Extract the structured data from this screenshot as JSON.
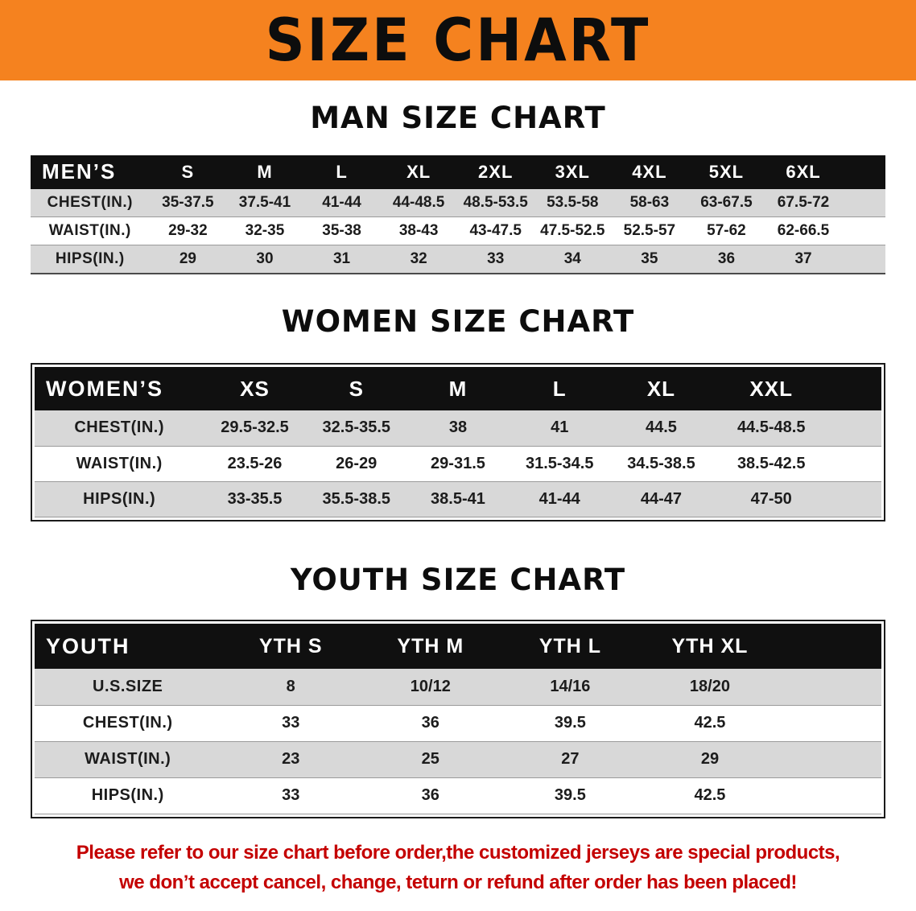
{
  "banner": {
    "title": "SIZE CHART",
    "background_color": "#f5821f",
    "text_color": "#0d0d0d"
  },
  "chart_data": [
    {
      "type": "table",
      "title": "MAN SIZE CHART",
      "header": [
        "MEN’S",
        "S",
        "M",
        "L",
        "XL",
        "2XL",
        "3XL",
        "4XL",
        "5XL",
        "6XL"
      ],
      "rows": [
        [
          "CHEST(IN.)",
          "35-37.5",
          "37.5-41",
          "41-44",
          "44-48.5",
          "48.5-53.5",
          "53.5-58",
          "58-63",
          "63-67.5",
          "67.5-72"
        ],
        [
          "WAIST(IN.)",
          "29-32",
          "32-35",
          "35-38",
          "38-43",
          "43-47.5",
          "47.5-52.5",
          "52.5-57",
          "57-62",
          "62-66.5"
        ],
        [
          "HIPS(IN.)",
          "29",
          "30",
          "31",
          "32",
          "33",
          "34",
          "35",
          "36",
          "37"
        ]
      ]
    },
    {
      "type": "table",
      "title": "WOMEN SIZE CHART",
      "header": [
        "WOMEN’S",
        "XS",
        "S",
        "M",
        "L",
        "XL",
        "XXL"
      ],
      "rows": [
        [
          "CHEST(IN.)",
          "29.5-32.5",
          "32.5-35.5",
          "38",
          "41",
          "44.5",
          "44.5-48.5"
        ],
        [
          "WAIST(IN.)",
          "23.5-26",
          "26-29",
          "29-31.5",
          "31.5-34.5",
          "34.5-38.5",
          "38.5-42.5"
        ],
        [
          "HIPS(IN.)",
          "33-35.5",
          "35.5-38.5",
          "38.5-41",
          "41-44",
          "44-47",
          "47-50"
        ]
      ]
    },
    {
      "type": "table",
      "title": "YOUTH SIZE CHART",
      "header": [
        "YOUTH",
        "YTH S",
        "YTH M",
        "YTH L",
        "YTH XL"
      ],
      "rows": [
        [
          "U.S.SIZE",
          "8",
          "10/12",
          "14/16",
          "18/20"
        ],
        [
          "CHEST(IN.)",
          "33",
          "36",
          "39.5",
          "42.5"
        ],
        [
          "WAIST(IN.)",
          "23",
          "25",
          "27",
          "29"
        ],
        [
          "HIPS(IN.)",
          "33",
          "36",
          "39.5",
          "42.5"
        ]
      ]
    }
  ],
  "footer": {
    "line1": "Please refer to our size chart before order,the customized jerseys are special products,",
    "line2": "we don’t accept cancel, change, teturn or refund after order has been placed!",
    "text_color": "#c40000"
  }
}
